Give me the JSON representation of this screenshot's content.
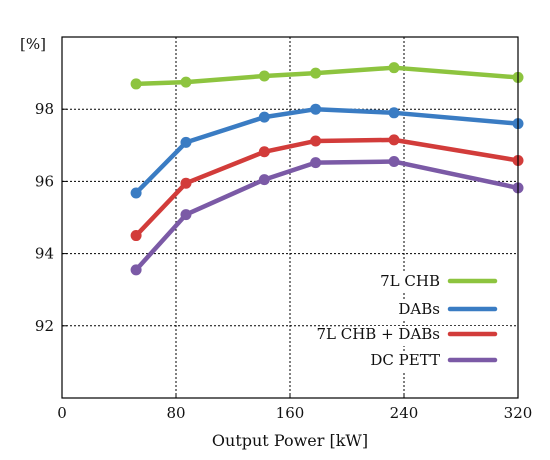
{
  "chart_data": {
    "type": "line",
    "ylabel": "[%]",
    "xlabel": "Output Power [kW]",
    "xlim": [
      0,
      320
    ],
    "ylim": [
      90,
      100
    ],
    "xticks": [
      0,
      80,
      160,
      240,
      320
    ],
    "yticks": [
      92,
      94,
      96,
      98
    ],
    "xtick_labels": [
      "0",
      "80",
      "160",
      "240",
      "320"
    ],
    "ytick_labels": [
      "92",
      "94",
      "96",
      "98"
    ],
    "grid": true,
    "legend_position": "bottom-right",
    "x": [
      52,
      87,
      142,
      178,
      233,
      320
    ],
    "series": [
      {
        "name": "7L CHB",
        "color": "#8dc43f",
        "values": [
          98.7,
          98.75,
          98.92,
          99.0,
          99.15,
          98.88
        ]
      },
      {
        "name": "DABs",
        "color": "#3a7cc3",
        "values": [
          95.68,
          97.08,
          97.78,
          98.0,
          97.9,
          97.6
        ]
      },
      {
        "name": "7L CHB + DABs",
        "color": "#d23c3a",
        "values": [
          94.5,
          95.95,
          96.82,
          97.12,
          97.15,
          96.58
        ]
      },
      {
        "name": "DC PETT",
        "color": "#7b5aa6",
        "values": [
          93.55,
          95.08,
          96.05,
          96.52,
          96.55,
          95.82
        ]
      }
    ]
  }
}
